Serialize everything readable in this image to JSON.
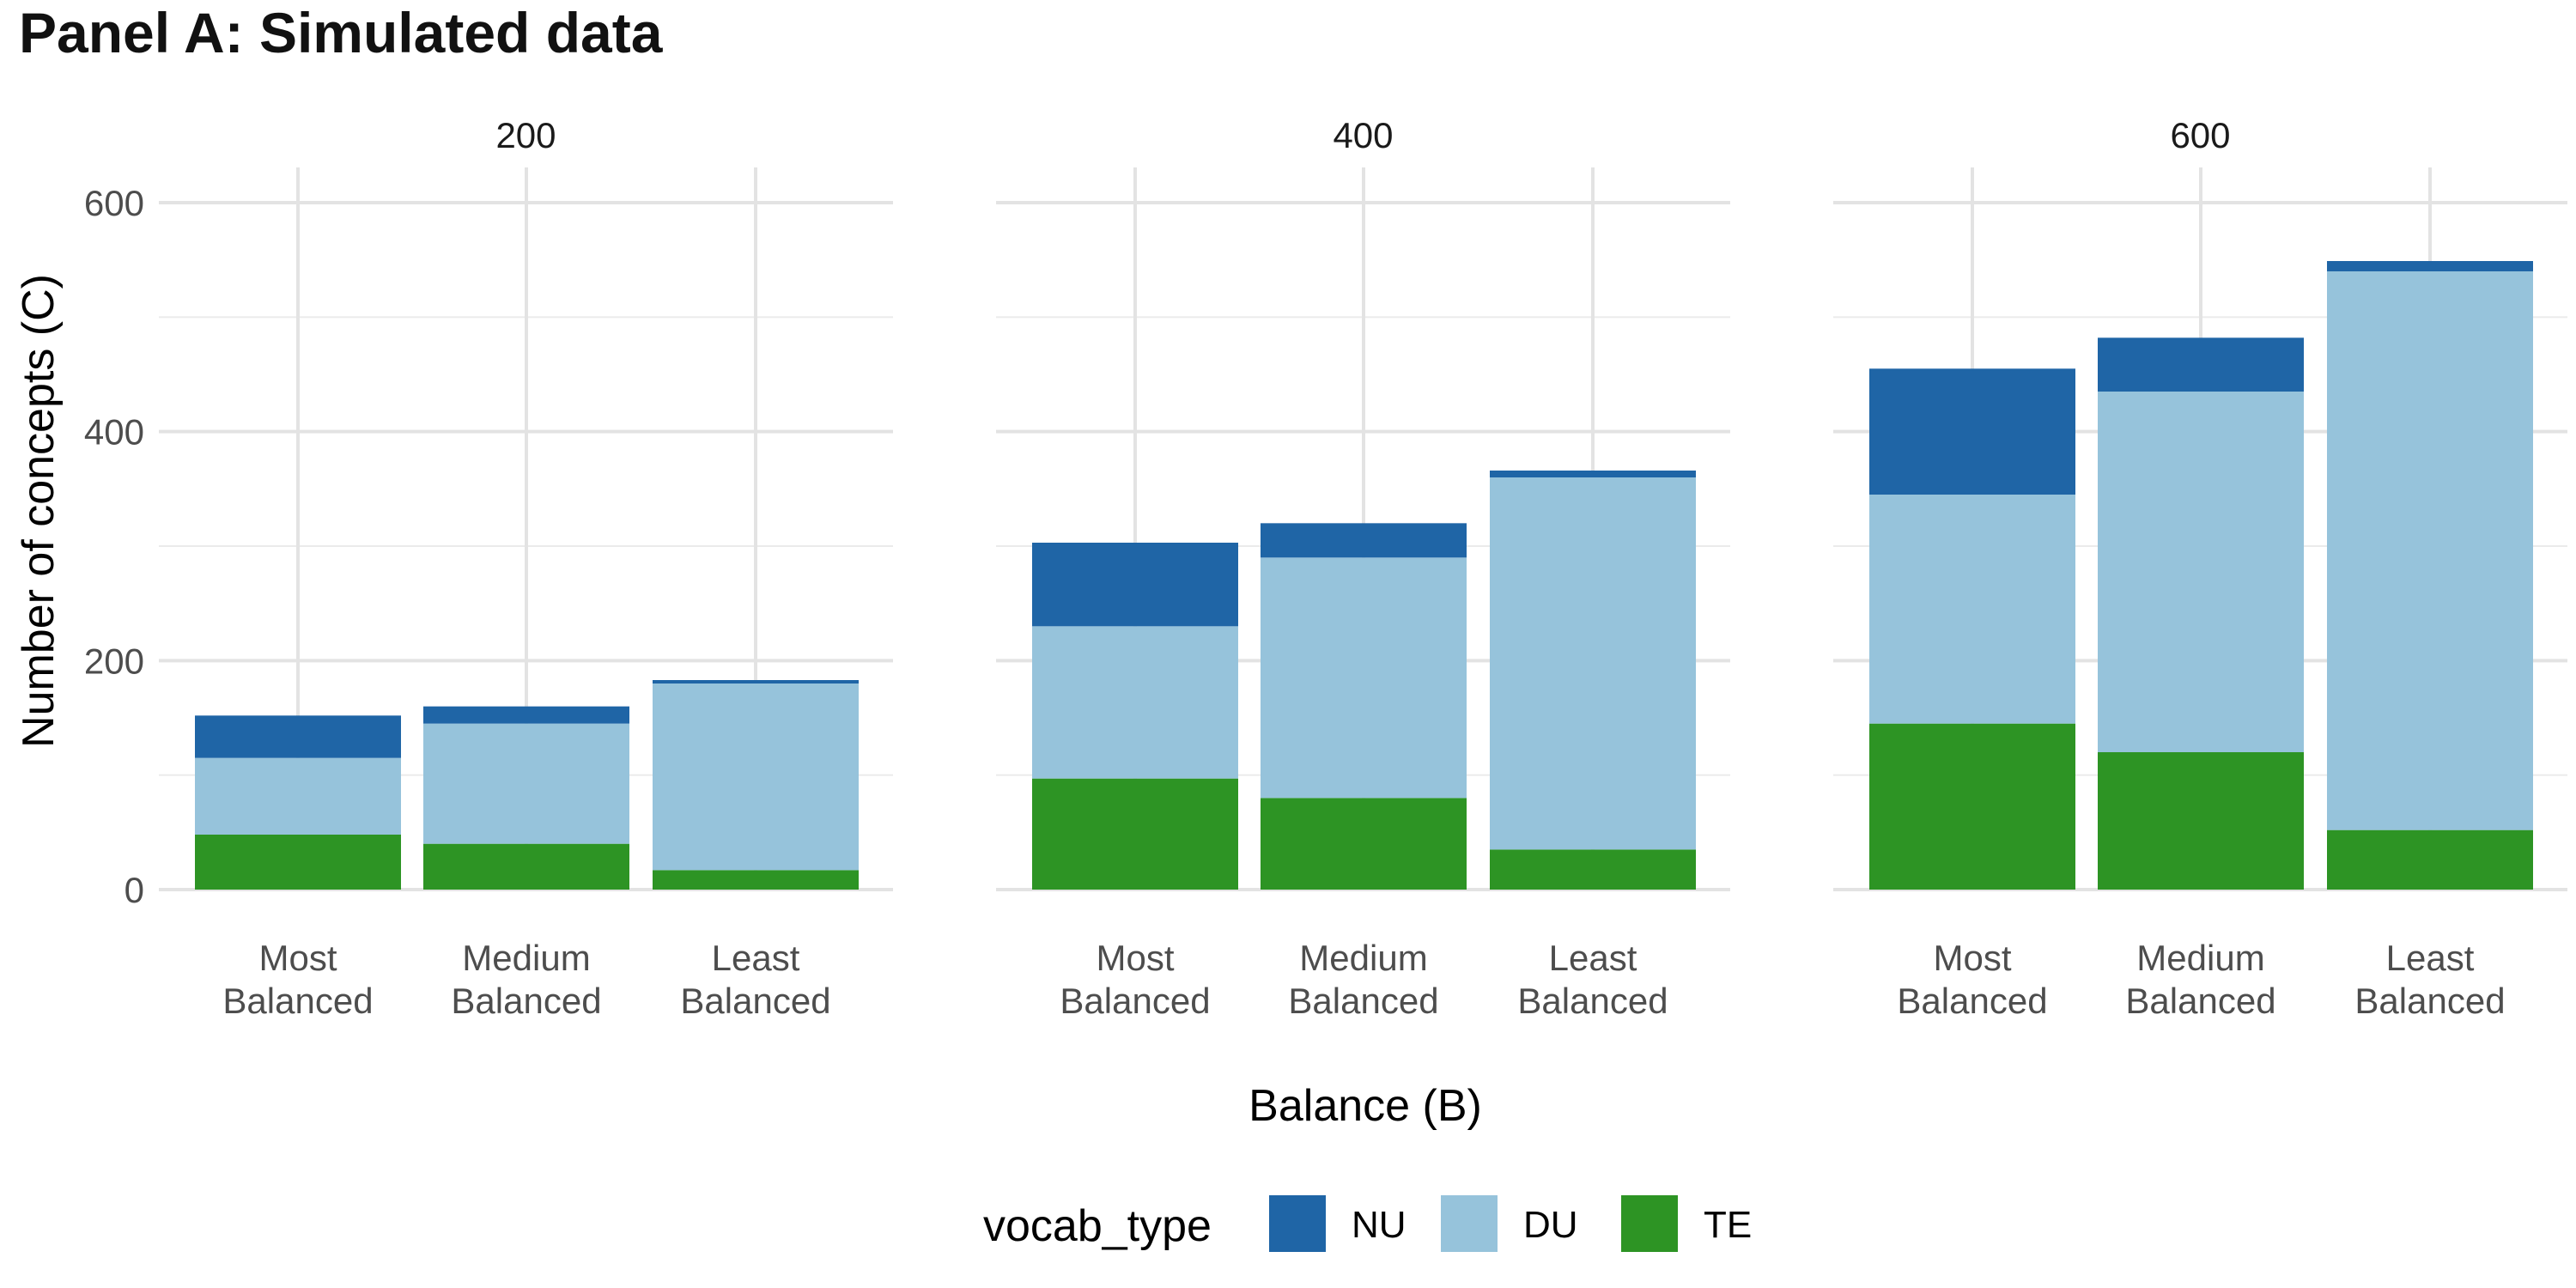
{
  "chart_data": {
    "type": "bar",
    "stacked": true,
    "title": "Panel A: Simulated data",
    "xlabel": "Balance (B)",
    "ylabel": "Number of concepts (C)",
    "ylim": [
      0,
      600
    ],
    "yticks": [
      0,
      200,
      400,
      600
    ],
    "grid": true,
    "legend": {
      "title": "vocab_type",
      "position": "bottom",
      "entries": [
        {
          "name": "NU",
          "color": "#1F65A6"
        },
        {
          "name": "DU",
          "color": "#96C3DB"
        },
        {
          "name": "TE",
          "color": "#2D9424"
        }
      ]
    },
    "categories": [
      "Most Balanced",
      "Medium Balanced",
      "Least Balanced"
    ],
    "category_lines": [
      [
        "Most",
        "Balanced"
      ],
      [
        "Medium",
        "Balanced"
      ],
      [
        "Least",
        "Balanced"
      ]
    ],
    "panels": [
      {
        "label": "200",
        "series": [
          {
            "name": "TE",
            "values": [
              48,
              40,
              17
            ]
          },
          {
            "name": "DU",
            "values": [
              67,
              105,
              163
            ]
          },
          {
            "name": "NU",
            "values": [
              37,
              15,
              3
            ]
          }
        ]
      },
      {
        "label": "400",
        "series": [
          {
            "name": "TE",
            "values": [
              97,
              80,
              35
            ]
          },
          {
            "name": "DU",
            "values": [
              133,
              210,
              325
            ]
          },
          {
            "name": "NU",
            "values": [
              73,
              30,
              6
            ]
          }
        ]
      },
      {
        "label": "600",
        "series": [
          {
            "name": "TE",
            "values": [
              145,
              120,
              52
            ]
          },
          {
            "name": "DU",
            "values": [
              200,
              315,
              488
            ]
          },
          {
            "name": "NU",
            "values": [
              110,
              47,
              9
            ]
          }
        ]
      }
    ]
  }
}
